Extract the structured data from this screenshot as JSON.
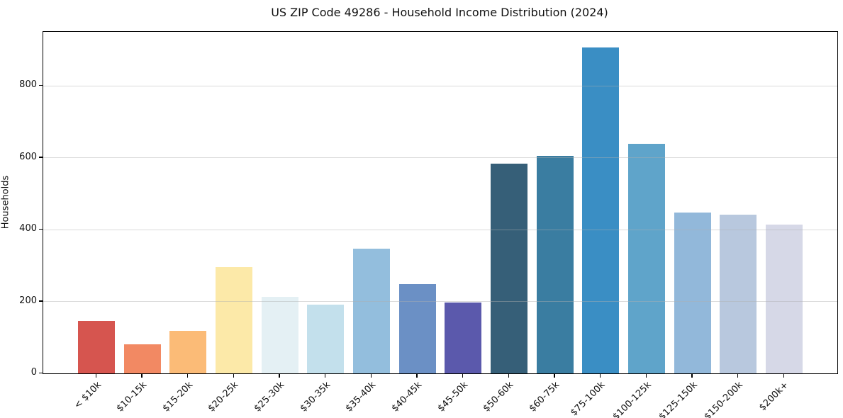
{
  "title": "US ZIP Code 49286 - Household Income Distribution (2024)",
  "chart_data": {
    "type": "bar",
    "title": "US ZIP Code 49286 - Household Income Distribution (2024)",
    "xlabel": "",
    "ylabel": "Households",
    "categories": [
      "< $10k",
      "$10-15k",
      "$15-20k",
      "$20-25k",
      "$25-30k",
      "$30-35k",
      "$35-40k",
      "$40-45k",
      "$45-50k",
      "$50-60k",
      "$60-75k",
      "$75-100k",
      "$100-125k",
      "$125-150k",
      "$150-200k",
      "$200k+"
    ],
    "values": [
      145,
      80,
      118,
      295,
      212,
      192,
      347,
      248,
      197,
      584,
      605,
      907,
      639,
      448,
      442,
      414
    ],
    "bar_colors": [
      "#d6554f",
      "#f28963",
      "#fbbb77",
      "#fce9a8",
      "#e4f0f4",
      "#c3e0ec",
      "#93bedd",
      "#6b90c5",
      "#5b59ac",
      "#365f78",
      "#3a7da1",
      "#3a8ec4",
      "#5fa4ca",
      "#92b8da",
      "#b8c8de",
      "#d6d8e7"
    ],
    "ylim": [
      0,
      950
    ],
    "yticks": [
      0,
      200,
      400,
      600,
      800
    ],
    "grid": "horizontal",
    "grid_color": "#b0b0b0",
    "legend": "none",
    "background": "#ffffff",
    "spine_color": "#000000"
  }
}
